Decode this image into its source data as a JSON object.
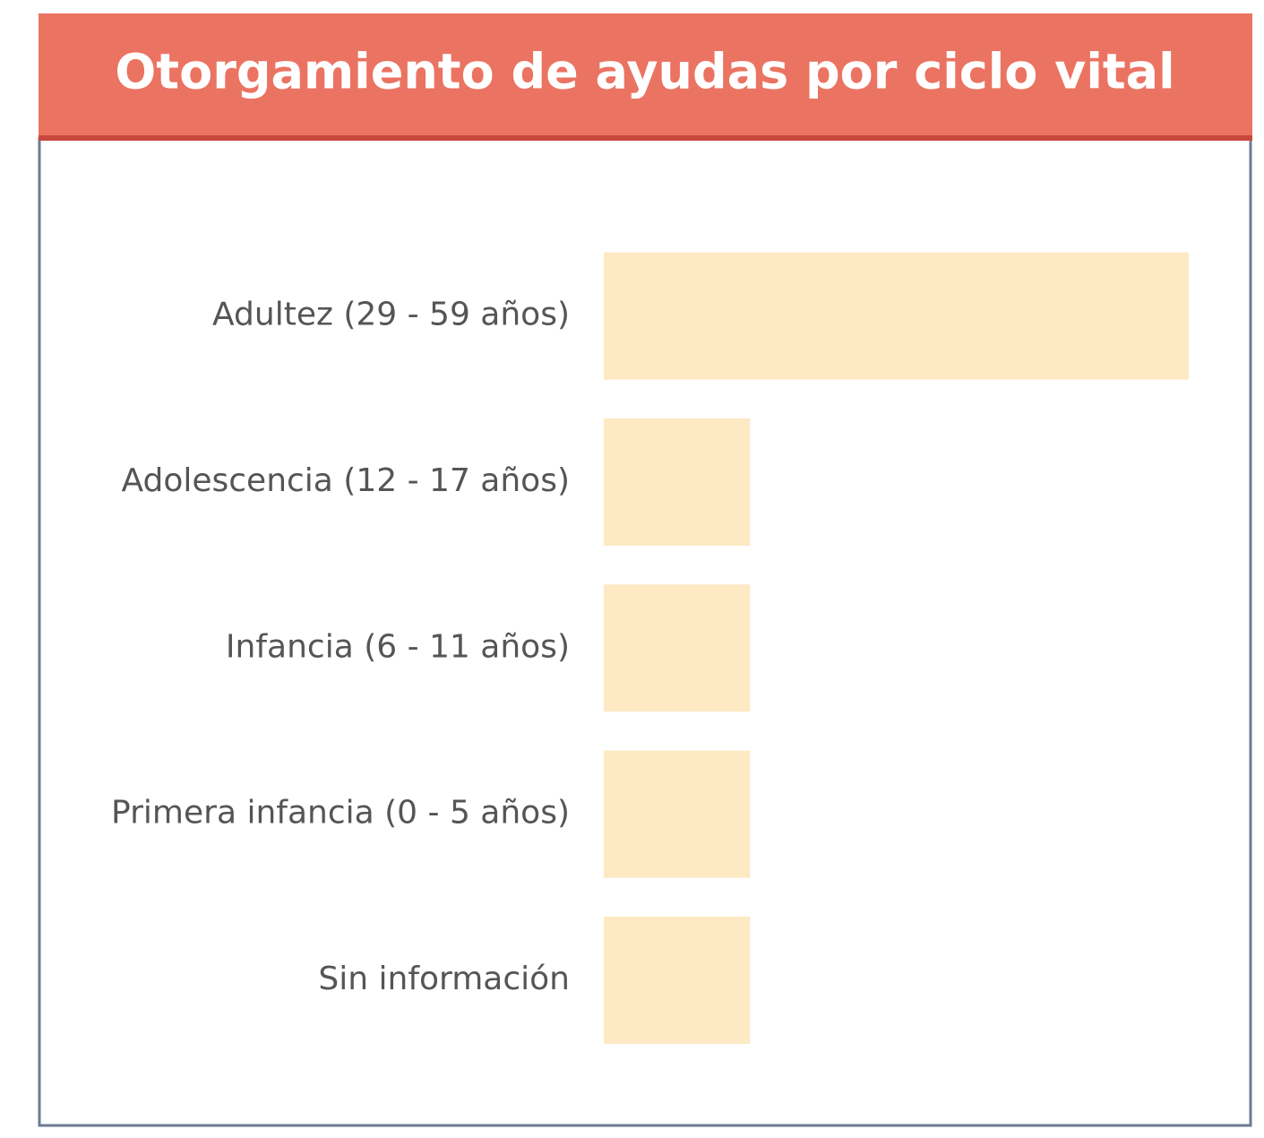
{
  "chart_data": {
    "type": "bar",
    "orientation": "horizontal",
    "title": "Otorgamiento de ayudas por ciclo vital",
    "categories": [
      "Adultez (29 - 59 años)",
      "Adolescencia (12 - 17 años)",
      "Infancia (6 - 11 años)",
      "Primera infancia (0 - 5 años)",
      "Sin información"
    ],
    "values": [
      4,
      1,
      1,
      1,
      1
    ],
    "color": "#fde9c3"
  }
}
